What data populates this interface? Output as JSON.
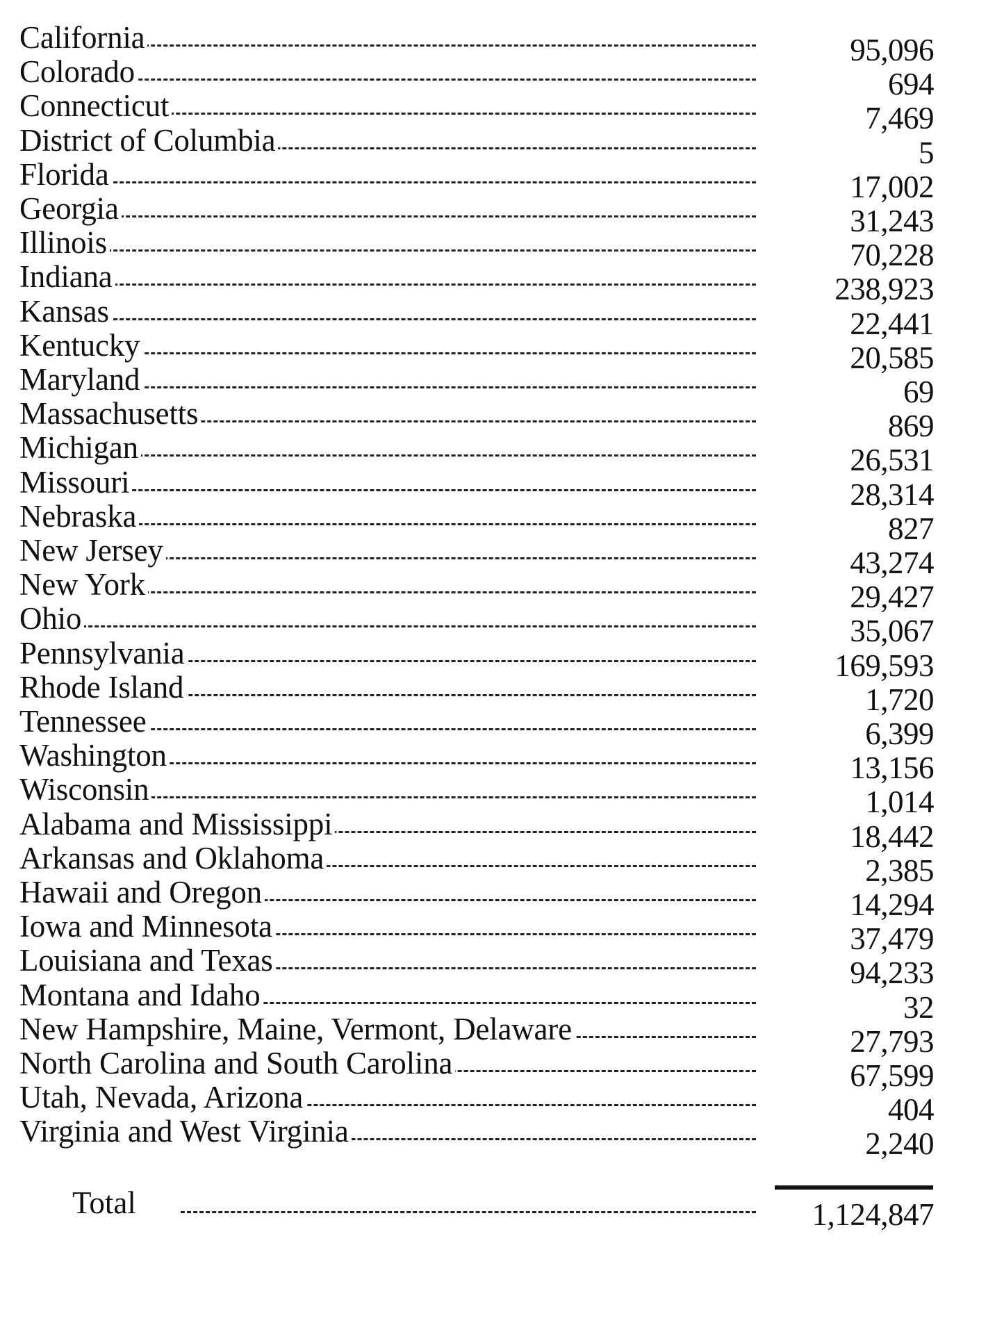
{
  "table": {
    "rows": [
      {
        "name": "California",
        "value": "95,096"
      },
      {
        "name": "Colorado",
        "value": "694"
      },
      {
        "name": "Connecticut",
        "value": "7,469"
      },
      {
        "name": "District of Columbia",
        "value": "5"
      },
      {
        "name": "Florida",
        "value": "17,002"
      },
      {
        "name": "Georgia",
        "value": "31,243"
      },
      {
        "name": "Illinois",
        "value": "70,228"
      },
      {
        "name": "Indiana",
        "value": "238,923"
      },
      {
        "name": "Kansas",
        "value": "22,441"
      },
      {
        "name": "Kentucky",
        "value": "20,585"
      },
      {
        "name": "Maryland",
        "value": "69"
      },
      {
        "name": "Massachusetts",
        "value": "869"
      },
      {
        "name": "Michigan",
        "value": "26,531"
      },
      {
        "name": "Missouri",
        "value": "28,314"
      },
      {
        "name": "Nebraska",
        "value": "827"
      },
      {
        "name": "New Jersey",
        "value": "43,274"
      },
      {
        "name": "New York",
        "value": "29,427"
      },
      {
        "name": "Ohio",
        "value": "35,067"
      },
      {
        "name": "Pennsylvania",
        "value": "169,593"
      },
      {
        "name": "Rhode Island",
        "value": "1,720"
      },
      {
        "name": "Tennessee",
        "value": "6,399"
      },
      {
        "name": "Washington",
        "value": "13,156"
      },
      {
        "name": "Wisconsin",
        "value": "1,014"
      },
      {
        "name": "Alabama and Mississippi",
        "value": "18,442"
      },
      {
        "name": "Arkansas and Oklahoma",
        "value": "2,385"
      },
      {
        "name": "Hawaii and Oregon",
        "value": "14,294"
      },
      {
        "name": "Iowa and Minnesota",
        "value": "37,479"
      },
      {
        "name": "Louisiana and Texas",
        "value": "94,233"
      },
      {
        "name": "Montana and Idaho",
        "value": "32"
      },
      {
        "name": "New Hampshire, Maine, Vermont, Delaware",
        "value": "27,793"
      },
      {
        "name": "North Carolina and South Carolina",
        "value": "67,599"
      },
      {
        "name": "Utah, Nevada, Arizona",
        "value": "404"
      },
      {
        "name": "Virginia and West Virginia",
        "value": "2,240"
      }
    ],
    "total_label": "Total",
    "total_value": "1,124,847"
  }
}
